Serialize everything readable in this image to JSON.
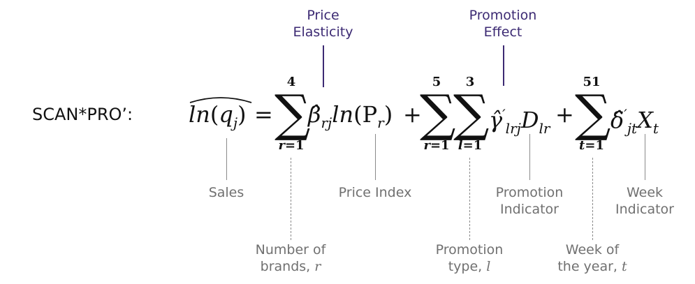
{
  "model_label": "SCAN*PRO’:",
  "equation": {
    "lhs_func": "ln",
    "lhs_var": "q",
    "lhs_sub": "j",
    "equals": "=",
    "sum1": {
      "upper": "4",
      "lower_var": "r",
      "lower_eq": "=1"
    },
    "beta": "β̂",
    "beta_sub": "rj",
    "ln_func": "ln",
    "price_var": "P",
    "price_sub": "r",
    "plus1": "+",
    "sum2": {
      "upper": "5",
      "lower_var": "r",
      "lower_eq": "=1"
    },
    "sum3": {
      "upper": "3",
      "lower_var": "l",
      "lower_eq": "=1"
    },
    "gamma": "γ̂",
    "gamma_sup": "′",
    "gamma_sub": "lrj",
    "dummy_var": "D",
    "dummy_sub": "lr",
    "plus2": "+",
    "sum4": {
      "upper": "51",
      "lower_var": "t",
      "lower_eq": "=1"
    },
    "delta": "δ̂",
    "delta_sup": "′",
    "delta_sub": "jt",
    "week_var": "X",
    "week_sub": "t"
  },
  "top_labels": {
    "price_elasticity": [
      "Price",
      "Elasticity"
    ],
    "promotion_effect": [
      "Promotion",
      "Effect"
    ]
  },
  "bottom_labels": {
    "sales": "Sales",
    "price_index": "Price Index",
    "promotion_indicator": [
      "Promotion",
      "Indicator"
    ],
    "week_indicator": [
      "Week",
      "Indicator"
    ],
    "number_of_brands": [
      "Number of",
      "brands,",
      "r"
    ],
    "promotion_type": [
      "Promotion",
      "type,",
      "l"
    ],
    "week_of_year": [
      "Week of",
      "the year,",
      "t"
    ]
  },
  "colors": {
    "purple": "#3c2a73",
    "gray": "#707070",
    "text": "#111111"
  }
}
